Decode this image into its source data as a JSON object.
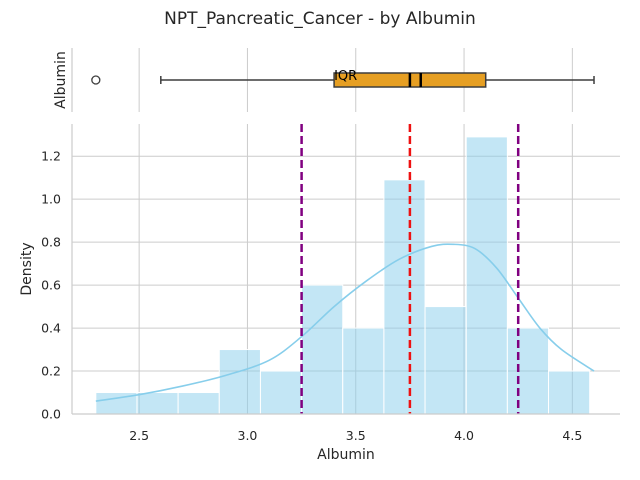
{
  "chart_data": {
    "type": "histogram",
    "title": "NPT_Pancreatic_Cancer - by Albumin",
    "xlabel": "Albumin",
    "ylabel": "Density",
    "box_ylabel": "Albumin",
    "xlim": [
      2.19,
      4.72
    ],
    "ylim": [
      0,
      1.35
    ],
    "xticks": [
      2.5,
      3.0,
      3.5,
      4.0,
      4.5
    ],
    "yticks": [
      0.0,
      0.2,
      0.4,
      0.6,
      0.8,
      1.0,
      1.2
    ],
    "grid": true,
    "histogram": {
      "bin_edges": [
        2.3,
        2.49,
        2.68,
        2.87,
        3.06,
        3.25,
        3.44,
        3.63,
        3.82,
        4.01,
        4.2,
        4.39,
        4.58
      ],
      "densities": [
        0.1,
        0.1,
        0.1,
        0.3,
        0.2,
        0.6,
        0.4,
        1.09,
        0.5,
        1.29,
        0.4,
        0.2
      ],
      "color": "#87ceeb"
    },
    "kde": {
      "x": [
        2.3,
        2.5,
        2.7,
        2.9,
        3.1,
        3.25,
        3.4,
        3.55,
        3.7,
        3.85,
        3.95,
        4.05,
        4.15,
        4.25,
        4.35,
        4.45,
        4.6
      ],
      "y": [
        0.06,
        0.09,
        0.13,
        0.18,
        0.25,
        0.36,
        0.5,
        0.62,
        0.72,
        0.78,
        0.79,
        0.77,
        0.68,
        0.54,
        0.4,
        0.3,
        0.2
      ],
      "color": "#87ceeb"
    },
    "vlines": [
      {
        "x": 3.25,
        "color": "#800080",
        "style": "dashed"
      },
      {
        "x": 3.75,
        "color": "#ee1111",
        "style": "dashed"
      },
      {
        "x": 4.25,
        "color": "#800080",
        "style": "dashed"
      }
    ],
    "boxplot": {
      "whisker_low": 2.6,
      "q1": 3.4,
      "median": 3.8,
      "q3": 4.1,
      "whisker_high": 4.6,
      "mean": 3.75,
      "outliers": [
        2.3
      ],
      "color": "#e69f23",
      "annotation": "IQR"
    }
  }
}
